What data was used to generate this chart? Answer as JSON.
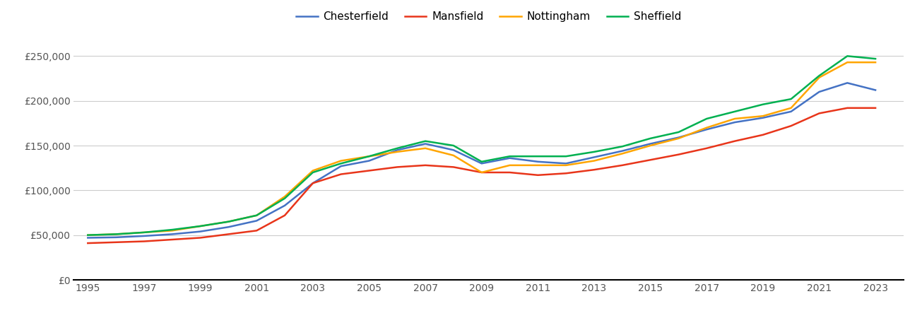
{
  "years": [
    1995,
    1996,
    1997,
    1998,
    1999,
    2000,
    2001,
    2002,
    2003,
    2004,
    2005,
    2006,
    2007,
    2008,
    2009,
    2010,
    2011,
    2012,
    2013,
    2014,
    2015,
    2016,
    2017,
    2018,
    2019,
    2020,
    2021,
    2022,
    2023
  ],
  "Chesterfield": [
    47000,
    47500,
    49000,
    51000,
    54000,
    59000,
    66000,
    83000,
    108000,
    127000,
    133000,
    145000,
    152000,
    145000,
    130000,
    136000,
    132000,
    130000,
    137000,
    144000,
    152000,
    159000,
    168000,
    176000,
    181000,
    188000,
    210000,
    220000,
    212000
  ],
  "Mansfield": [
    41000,
    42000,
    43000,
    45000,
    47000,
    51000,
    55000,
    72000,
    108000,
    118000,
    122000,
    126000,
    128000,
    126000,
    120000,
    120000,
    117000,
    119000,
    123000,
    128000,
    134000,
    140000,
    147000,
    155000,
    162000,
    172000,
    186000,
    192000,
    192000
  ],
  "Nottingham": [
    50000,
    51000,
    53000,
    55000,
    60000,
    65000,
    72000,
    93000,
    122000,
    133000,
    138000,
    143000,
    147000,
    139000,
    120000,
    128000,
    128000,
    128000,
    133000,
    141000,
    150000,
    158000,
    170000,
    180000,
    183000,
    192000,
    226000,
    243000,
    243000
  ],
  "Sheffield": [
    50000,
    51000,
    53000,
    56000,
    60000,
    65000,
    72000,
    91000,
    120000,
    130000,
    138000,
    147000,
    155000,
    150000,
    132000,
    138000,
    138000,
    138000,
    143000,
    149000,
    158000,
    165000,
    180000,
    188000,
    196000,
    202000,
    228000,
    250000,
    247000
  ],
  "colors": {
    "Chesterfield": "#4472C4",
    "Mansfield": "#E8351A",
    "Nottingham": "#FFA500",
    "Sheffield": "#00B050"
  },
  "ylim": [
    0,
    270000
  ],
  "yticks": [
    0,
    50000,
    100000,
    150000,
    200000,
    250000
  ],
  "xlim_start": 1994.5,
  "xlim_end": 2024.0,
  "xticks": [
    1995,
    1997,
    1999,
    2001,
    2003,
    2005,
    2007,
    2009,
    2011,
    2013,
    2015,
    2017,
    2019,
    2021,
    2023
  ],
  "background_color": "#ffffff",
  "grid_color": "#cccccc",
  "legend_labels": [
    "Chesterfield",
    "Mansfield",
    "Nottingham",
    "Sheffield"
  ]
}
